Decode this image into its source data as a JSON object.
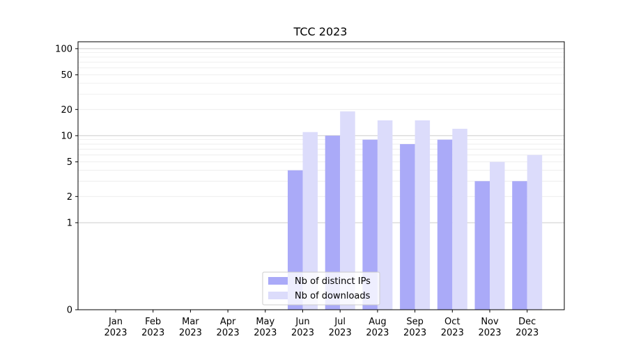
{
  "chart_data": {
    "type": "bar",
    "title": "TCC 2023",
    "xlabel": "",
    "ylabel": "",
    "yscale": "symlog",
    "ylim": [
      0,
      120
    ],
    "yticks": [
      0,
      1,
      2,
      5,
      10,
      20,
      50,
      100
    ],
    "ytick_labels": [
      "0",
      "1",
      "2",
      "5",
      "10",
      "20",
      "50",
      "100"
    ],
    "categories": [
      "Jan",
      "Feb",
      "Mar",
      "Apr",
      "May",
      "Jun",
      "Jul",
      "Aug",
      "Sep",
      "Oct",
      "Nov",
      "Dec"
    ],
    "category_sublabels": [
      "2023",
      "2023",
      "2023",
      "2023",
      "2023",
      "2023",
      "2023",
      "2023",
      "2023",
      "2023",
      "2023",
      "2023"
    ],
    "series": [
      {
        "name": "Nb of distinct IPs",
        "color": "#aaaaf8",
        "values": [
          0,
          0,
          0,
          0,
          0,
          4,
          10,
          9,
          8,
          9,
          3,
          3
        ]
      },
      {
        "name": "Nb of downloads",
        "color": "#dcdcfb",
        "values": [
          0,
          0,
          0,
          0,
          0,
          11,
          19,
          15,
          15,
          12,
          5,
          6
        ]
      }
    ],
    "grid": "horizontal",
    "legend_position": "lower-center"
  }
}
